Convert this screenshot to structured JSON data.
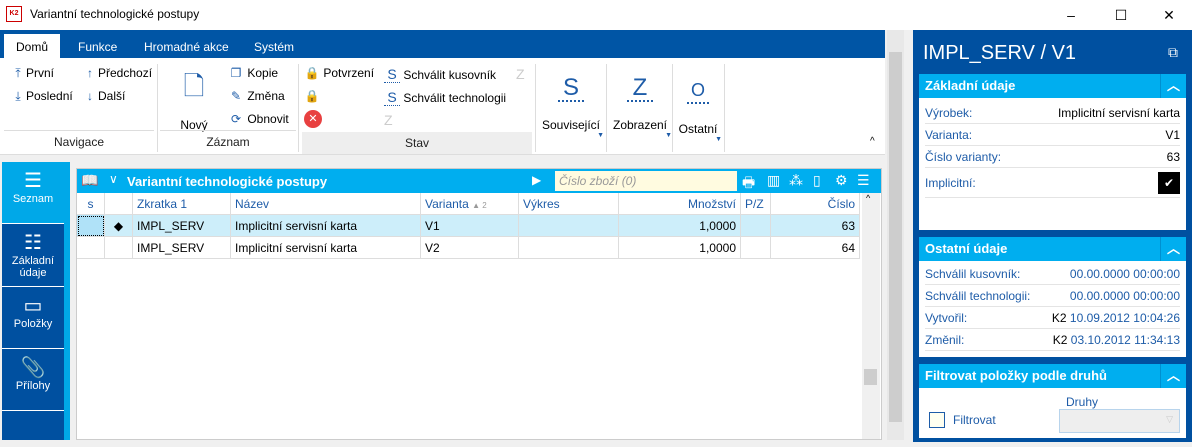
{
  "window": {
    "title": "Variantní technologické postupy",
    "logo": "K2"
  },
  "ribbon": {
    "tabs": [
      "Domů",
      "Funkce",
      "Hromadné akce",
      "Systém"
    ],
    "navigace": {
      "label": "Navigace",
      "first": "První",
      "last": "Poslední",
      "prev": "Předchozí",
      "next": "Další"
    },
    "zaznam": {
      "label": "Záznam",
      "new": "Nový",
      "copy": "Kopie",
      "edit": "Změna",
      "refresh": "Obnovit"
    },
    "stav": {
      "label": "Stav",
      "confirm": "Potvrzení",
      "approve_bom": "Schválit kusovník",
      "approve_tech": "Schválit technologii"
    },
    "souvisejici": {
      "glyph": "S",
      "label": "Související"
    },
    "zobrazeni": {
      "glyph": "Z",
      "label": "Zobrazení"
    },
    "ostatni": {
      "glyph": "O",
      "label": "Ostatní"
    }
  },
  "sidebar": {
    "items": [
      {
        "label": "Seznam",
        "icon": "menu-icon"
      },
      {
        "label": "Základní údaje",
        "icon": "list-icon"
      },
      {
        "label": "Položky",
        "icon": "box-icon"
      },
      {
        "label": "Přílohy",
        "icon": "paperclip-icon"
      }
    ]
  },
  "grid": {
    "title": "Variantní technologické postupy",
    "search_placeholder": "Číslo zboží (0)",
    "columns": [
      "s",
      "",
      "Zkratka 1",
      "Název",
      "Varianta",
      "Výkres",
      "Množství",
      "P/Z",
      "Číslo"
    ],
    "sort_indicator": "▲ 2",
    "rows": [
      [
        "",
        "◆",
        "IMPL_SERV",
        "Implicitní servisní karta",
        "V1",
        "",
        "1,0000",
        "",
        "63"
      ],
      [
        "",
        "",
        "IMPL_SERV",
        "Implicitní servisní karta",
        "V2",
        "",
        "1,0000",
        "",
        "64"
      ]
    ],
    "selected_row": 0
  },
  "detail": {
    "title": "IMPL_SERV / V1",
    "basic": {
      "header": "Základní údaje",
      "fields": [
        [
          "Výrobek:",
          "Implicitní servisní karta"
        ],
        [
          "Varianta:",
          "V1"
        ],
        [
          "Číslo varianty:",
          "63"
        ]
      ],
      "implicit_label": "Implicitní:",
      "implicit": true
    },
    "other": {
      "header": "Ostatní údaje",
      "fields": [
        [
          "Schválil kusovník:",
          "00.00.0000 00:00:00"
        ],
        [
          "Schválil technologii:",
          "00.00.0000 00:00:00"
        ]
      ],
      "created_label": "Vytvořil:",
      "created_user": "K2",
      "created": "10.09.2012 10:04:26",
      "changed_label": "Změnil:",
      "changed_user": "K2",
      "changed": "03.10.2012 11:34:13"
    },
    "filter": {
      "header": "Filtrovat položky podle druhů",
      "checkbox_label": "Filtrovat",
      "checked": false,
      "druhy_label": "Druhy",
      "druhy_value": ""
    }
  }
}
